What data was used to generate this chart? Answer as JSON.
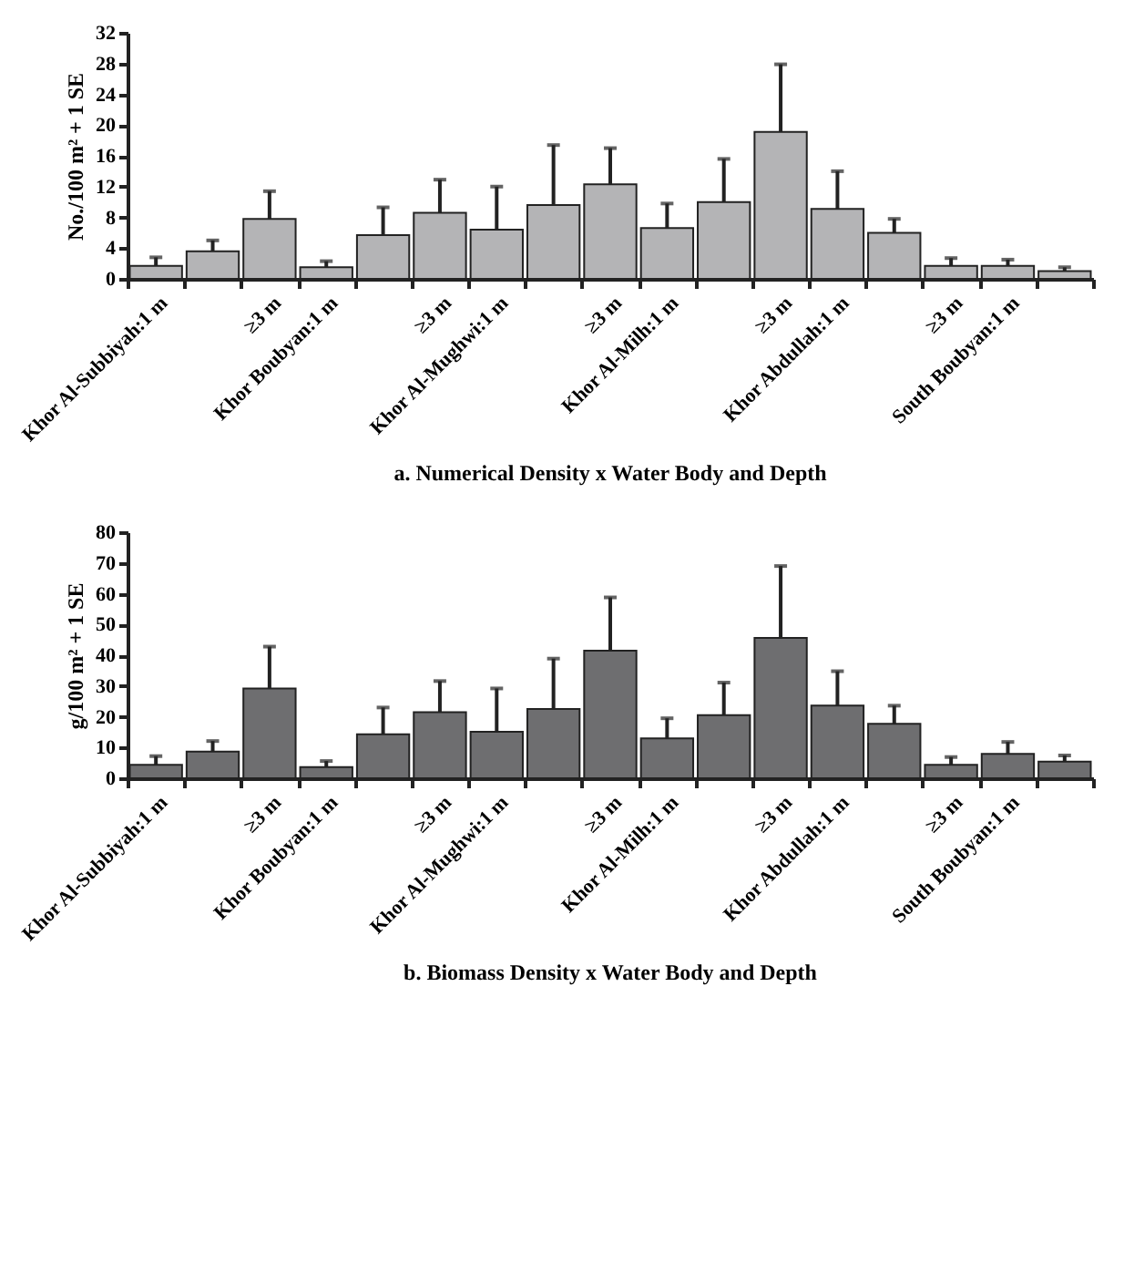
{
  "chart_data": [
    {
      "type": "bar",
      "title": "a. Numerical Density x Water Body and Depth",
      "ylabel": "No./100 m² + 1 SE",
      "categories": [
        "Khor Al-Subbiyah:1 m",
        null,
        "≥3 m",
        "Khor Boubyan:1 m",
        null,
        "≥3 m",
        "Khor Al-Mughwi:1 m",
        null,
        "≥3 m",
        "Khor Al-Milh:1 m",
        null,
        "≥3 m",
        "Khor Abdullah:1 m",
        null,
        "≥3 m",
        "South Boubyan:1 m",
        null
      ],
      "series": [
        {
          "color": "#b4b4b6",
          "values": [
            1.7,
            3.6,
            7.8,
            1.5,
            5.7,
            8.6,
            6.4,
            9.6,
            12.3,
            6.6,
            10.0,
            19.1,
            9.1,
            6.0,
            1.7,
            1.7,
            1.0
          ],
          "errors": [
            [
              1.7,
              2.8
            ],
            [
              3.6,
              5.0
            ],
            [
              7.8,
              11.4
            ],
            [
              1.5,
              2.3
            ],
            [
              5.7,
              9.3
            ],
            [
              8.6,
              12.9
            ],
            [
              6.4,
              12.0
            ],
            [
              9.6,
              17.4
            ],
            [
              12.3,
              17.0
            ],
            [
              6.6,
              9.8
            ],
            [
              10.0,
              15.6
            ],
            [
              19.1,
              27.9
            ],
            [
              9.1,
              14.0
            ],
            [
              6.0,
              7.8
            ],
            [
              1.7,
              2.7
            ],
            [
              1.7,
              2.5
            ],
            [
              1.0,
              1.5
            ]
          ]
        }
      ],
      "ylim": [
        0,
        32
      ],
      "yticks": [
        0,
        4,
        8,
        12,
        16,
        20,
        24,
        28,
        32
      ]
    },
    {
      "type": "bar",
      "title": "b. Biomass Density x Water Body and Depth",
      "ylabel": "g/100 m² + 1 SE",
      "categories": [
        "Khor Al-Subbiyah:1 m",
        null,
        "≥3 m",
        "Khor Boubyan:1 m",
        null,
        "≥3 m",
        "Khor Al-Mughwi:1 m",
        null,
        "≥3 m",
        "Khor Al-Milh:1 m",
        null,
        "≥3 m",
        "Khor Abdullah:1 m",
        null,
        "≥3 m",
        "South Boubyan:1 m",
        null
      ],
      "series": [
        {
          "color": "#6e6e70",
          "values": [
            4.4,
            8.7,
            29.2,
            3.6,
            14.3,
            21.5,
            15.1,
            22.5,
            41.5,
            13.0,
            20.5,
            45.6,
            23.6,
            17.7,
            4.4,
            7.9,
            5.4
          ],
          "errors": [
            [
              4.4,
              7.2
            ],
            [
              8.7,
              12.1
            ],
            [
              29.2,
              42.8
            ],
            [
              3.6,
              5.6
            ],
            [
              14.3,
              23.0
            ],
            [
              21.5,
              31.6
            ],
            [
              15.1,
              29.2
            ],
            [
              22.5,
              38.9
            ],
            [
              41.5,
              58.8
            ],
            [
              13.0,
              19.5
            ],
            [
              20.5,
              31.1
            ],
            [
              45.6,
              69.0
            ],
            [
              23.6,
              34.8
            ],
            [
              17.7,
              23.6
            ],
            [
              4.4,
              6.9
            ],
            [
              7.9,
              11.8
            ],
            [
              5.4,
              7.4
            ]
          ]
        }
      ],
      "ylim": [
        0,
        80
      ],
      "yticks": [
        0,
        10,
        20,
        30,
        40,
        50,
        60,
        70,
        80
      ]
    }
  ]
}
